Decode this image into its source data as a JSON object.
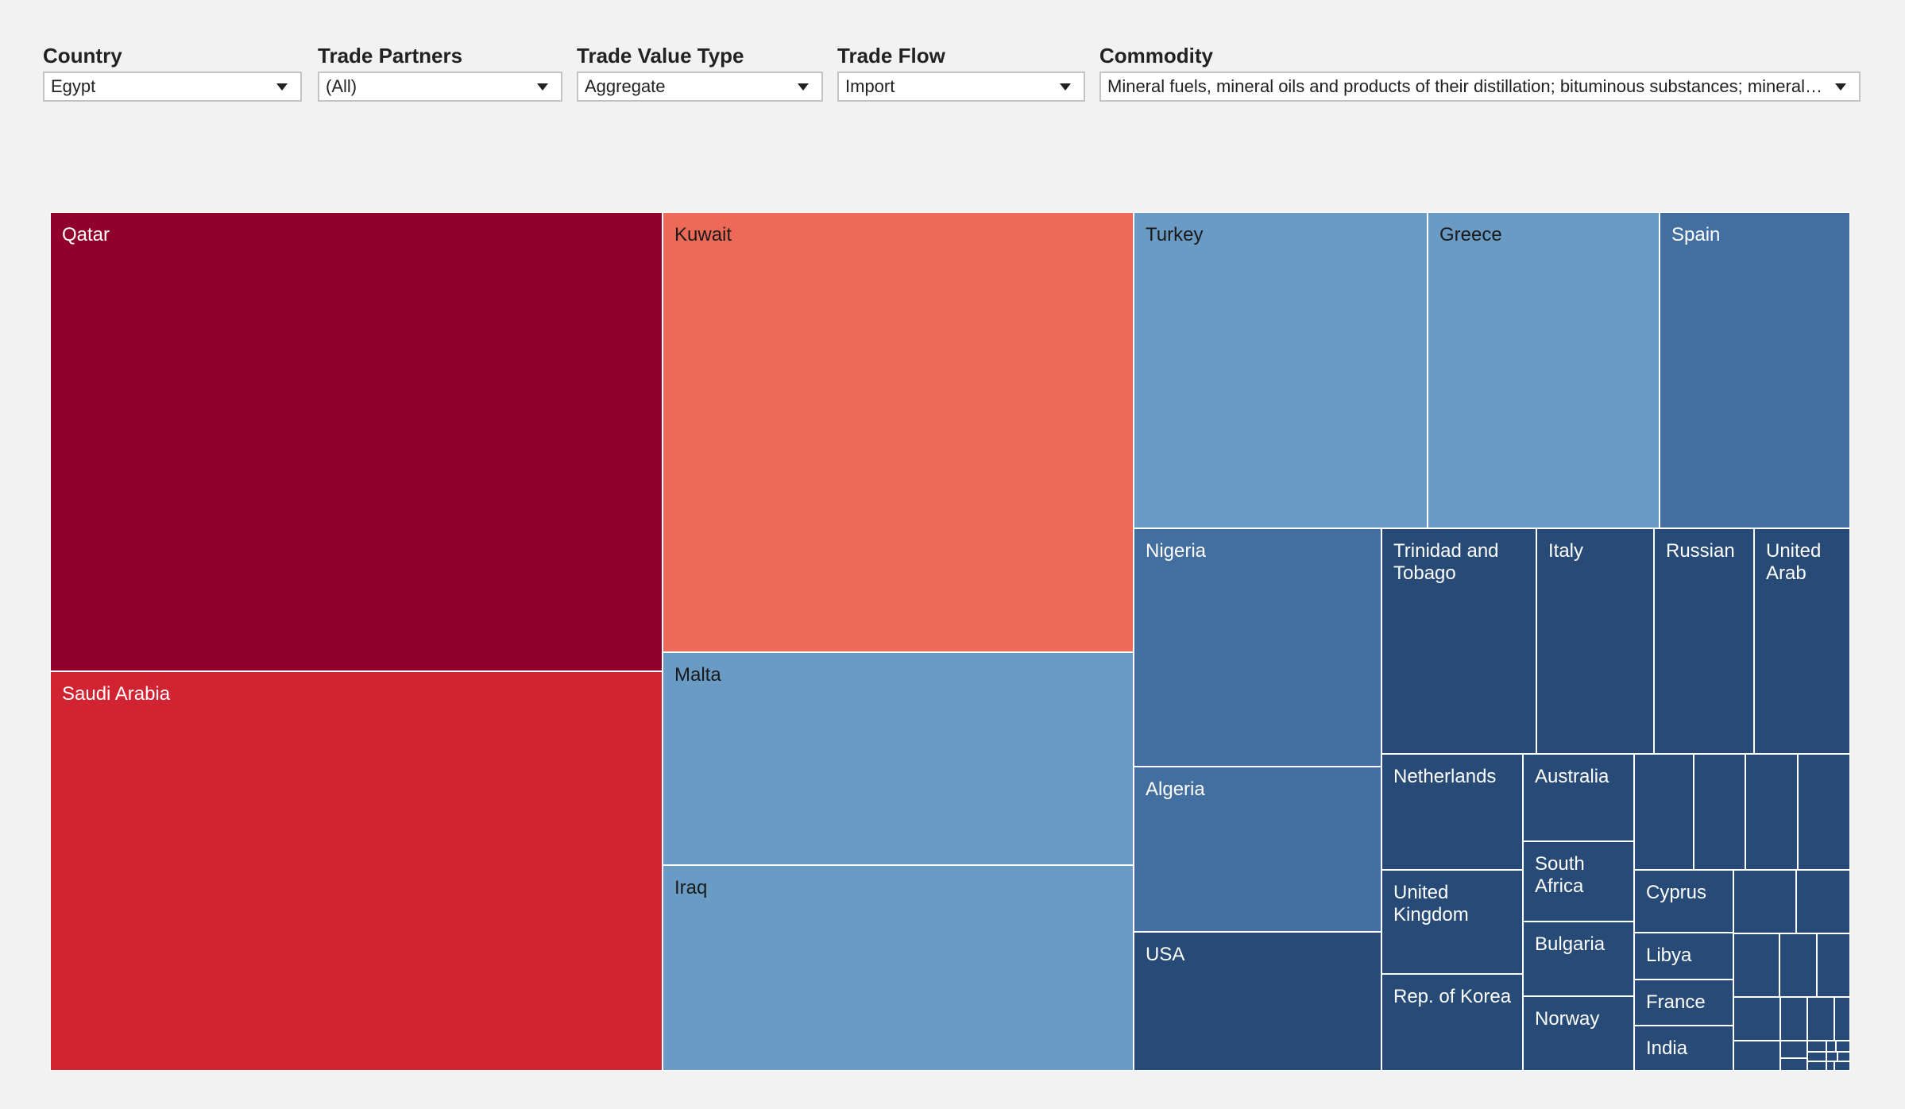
{
  "filters": {
    "country": {
      "label": "Country",
      "value": "Egypt"
    },
    "trade_partners": {
      "label": "Trade Partners",
      "value": "(All)"
    },
    "trade_value_type": {
      "label": "Trade Value Type",
      "value": "Aggregate"
    },
    "trade_flow": {
      "label": "Trade Flow",
      "value": "Import"
    },
    "commodity": {
      "label": "Commodity",
      "value": "Mineral fuels, mineral oils and products of their distillation; bituminous substances; mineral …"
    }
  },
  "colors": {
    "darkest_red": "#91002c",
    "red": "#d12331",
    "salmon": "#ee6a58",
    "light_blue": "#6a9bc5",
    "mid_blue": "#436fa0",
    "dark_blue": "#274a76",
    "background": "#f2f2f2",
    "tile_border": "#ffffff"
  },
  "chart_data": {
    "type": "treemap",
    "title": "",
    "partners": [
      {
        "name": "Qatar",
        "color": "#91002c",
        "label_color": "#ffffff"
      },
      {
        "name": "Saudi Arabia",
        "color": "#d12331",
        "label_color": "#ffffff"
      },
      {
        "name": "Kuwait",
        "color": "#ee6a58",
        "label_color": "#1a1a1a"
      },
      {
        "name": "Malta",
        "color": "#6a9bc5",
        "label_color": "#1a1a1a"
      },
      {
        "name": "Iraq",
        "color": "#6a9bc5",
        "label_color": "#1a1a1a"
      },
      {
        "name": "Turkey",
        "color": "#6a9bc5",
        "label_color": "#1a1a1a"
      },
      {
        "name": "Greece",
        "color": "#6a9bc5",
        "label_color": "#1a1a1a"
      },
      {
        "name": "Spain",
        "color": "#436fa0",
        "label_color": "#ffffff"
      },
      {
        "name": "Nigeria",
        "color": "#436fa0",
        "label_color": "#ffffff"
      },
      {
        "name": "Algeria",
        "color": "#436fa0",
        "label_color": "#ffffff"
      },
      {
        "name": "USA",
        "color": "#274a76",
        "label_color": "#ffffff"
      },
      {
        "name": "Trinidad and Tobago",
        "color": "#274a76",
        "label_color": "#ffffff"
      },
      {
        "name": "Italy",
        "color": "#274a76",
        "label_color": "#ffffff"
      },
      {
        "name": "Russian",
        "color": "#274a76",
        "label_color": "#ffffff"
      },
      {
        "name": "United Arab",
        "color": "#274a76",
        "label_color": "#ffffff"
      },
      {
        "name": "Netherlands",
        "color": "#274a76",
        "label_color": "#ffffff"
      },
      {
        "name": "United Kingdom",
        "color": "#274a76",
        "label_color": "#ffffff"
      },
      {
        "name": "Rep. of Korea",
        "color": "#274a76",
        "label_color": "#ffffff"
      },
      {
        "name": "Australia",
        "color": "#274a76",
        "label_color": "#ffffff"
      },
      {
        "name": "South Africa",
        "color": "#274a76",
        "label_color": "#ffffff"
      },
      {
        "name": "Bulgaria",
        "color": "#274a76",
        "label_color": "#ffffff"
      },
      {
        "name": "Norway",
        "color": "#274a76",
        "label_color": "#ffffff"
      },
      {
        "name": "Cyprus",
        "color": "#274a76",
        "label_color": "#ffffff"
      },
      {
        "name": "Libya",
        "color": "#274a76",
        "label_color": "#ffffff"
      },
      {
        "name": "France",
        "color": "#274a76",
        "label_color": "#ffffff"
      },
      {
        "name": "India",
        "color": "#274a76",
        "label_color": "#ffffff"
      }
    ],
    "unlabeled_small_partners_color": "#274a76"
  }
}
